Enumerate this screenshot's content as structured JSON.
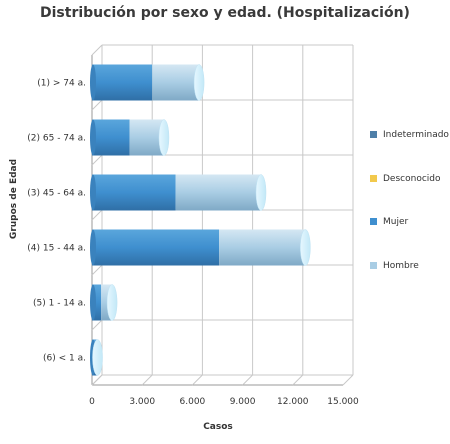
{
  "chart_data": {
    "type": "bar",
    "orientation": "horizontal",
    "stacked": true,
    "title": "Distribución por sexo y edad. (Hospitalización)",
    "xlabel": "Casos",
    "ylabel": "Grupos de Edad",
    "categories": [
      "(1) > 74 a.",
      "(2) 65 - 74 a.",
      "(3) 45 - 64 a.",
      "(4) 15 - 44 a.",
      "(5) 1 - 14 a.",
      "(6) < 1 a."
    ],
    "series": [
      {
        "name": "Indeterminado",
        "color": "#4e7fa8",
        "values": [
          0,
          0,
          0,
          0,
          0,
          0
        ]
      },
      {
        "name": "Desconocido",
        "color": "#f2c94c",
        "values": [
          0,
          0,
          0,
          0,
          0,
          0
        ]
      },
      {
        "name": "Mujer",
        "color": "#3f8fcf",
        "values": [
          3600,
          2250,
          5000,
          7600,
          550,
          280
        ]
      },
      {
        "name": "Hombre",
        "color": "#a9cde4",
        "values": [
          2800,
          2050,
          5100,
          5150,
          650,
          50
        ]
      }
    ],
    "xlim": [
      0,
      15000
    ],
    "xticks": [
      "0",
      "3.000",
      "6.000",
      "9.000",
      "12.000",
      "15.000"
    ],
    "grid": true,
    "legend_position": "right"
  }
}
